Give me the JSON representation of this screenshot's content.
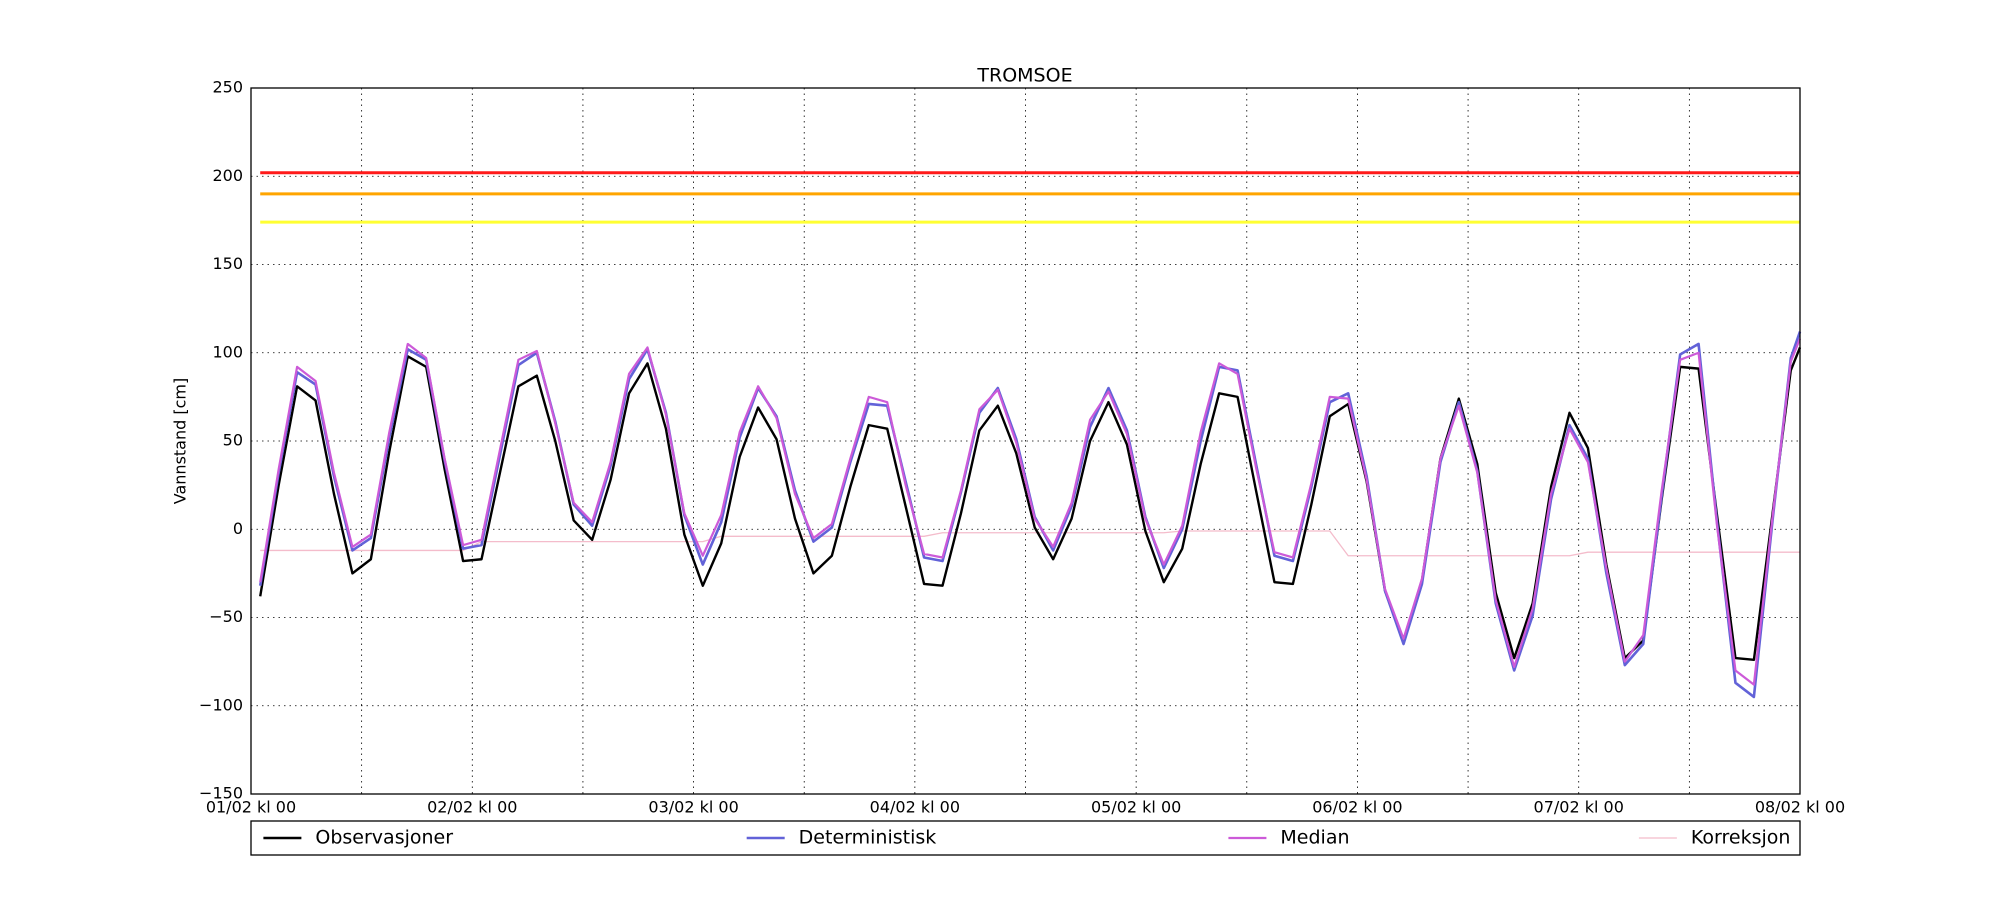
{
  "chart_data": {
    "type": "line",
    "title": "TROMSOE",
    "y_label": "Vannstand [cm]",
    "x": [
      1,
      3,
      5,
      7,
      9,
      11,
      13,
      15,
      17,
      19,
      21,
      23,
      25,
      27,
      29,
      31,
      33,
      35,
      37,
      39,
      41,
      43,
      45,
      47,
      49,
      51,
      53,
      55,
      57,
      59,
      61,
      63,
      65,
      67,
      69,
      71,
      73,
      75,
      77,
      79,
      81,
      83,
      85,
      87,
      89,
      91,
      93,
      95,
      97,
      99,
      101,
      103,
      105,
      107,
      109,
      111,
      113,
      115,
      117,
      119,
      121,
      123,
      125,
      127,
      129,
      131,
      133,
      135,
      137,
      139,
      141,
      143,
      145,
      147,
      149,
      151,
      153,
      155,
      157,
      159,
      161,
      163,
      165,
      167,
      168
    ],
    "series": [
      {
        "name": "Observasjoner",
        "color": "#000000",
        "width": 2.4,
        "values": [
          -38,
          25,
          81,
          73,
          20,
          -25,
          -17,
          44,
          98,
          92,
          34,
          -18,
          -17,
          32,
          81,
          87,
          50,
          5,
          -6,
          28,
          77,
          94,
          57,
          -3,
          -32,
          -8,
          41,
          69,
          51,
          6,
          -25,
          -15,
          24,
          59,
          57,
          13,
          -31,
          -32,
          9,
          56,
          70,
          43,
          1,
          -17,
          6,
          50,
          72,
          48,
          -1,
          -30,
          -11,
          37,
          77,
          75,
          22,
          -30,
          -31,
          14,
          64,
          71,
          27,
          -35,
          -63,
          -29,
          40,
          74,
          37,
          -36,
          -73,
          -42,
          24,
          66,
          46,
          -20,
          -73,
          -63,
          17,
          92,
          91,
          8,
          -73,
          -74,
          8,
          90,
          103
        ]
      },
      {
        "name": "Deterministisk",
        "color": "#6262d8",
        "width": 2.6,
        "values": [
          -32,
          32,
          89,
          82,
          30,
          -12,
          -5,
          52,
          102,
          96,
          39,
          -11,
          -9,
          42,
          93,
          100,
          61,
          14,
          2,
          36,
          85,
          102,
          66,
          8,
          -20,
          4,
          52,
          80,
          64,
          22,
          -7,
          1,
          38,
          71,
          70,
          27,
          -16,
          -18,
          21,
          66,
          80,
          51,
          7,
          -12,
          13,
          58,
          80,
          56,
          7,
          -22,
          0,
          50,
          92,
          90,
          37,
          -15,
          -18,
          24,
          72,
          77,
          30,
          -35,
          -65,
          -31,
          38,
          72,
          33,
          -42,
          -80,
          -49,
          17,
          59,
          40,
          -25,
          -77,
          -65,
          19,
          99,
          105,
          4,
          -87,
          -95,
          4,
          97,
          112
        ]
      },
      {
        "name": "Median",
        "color": "#cc5ad8",
        "width": 2.2,
        "values": [
          -30,
          34,
          92,
          84,
          32,
          -10,
          -3,
          55,
          105,
          97,
          40,
          -9,
          -6,
          45,
          96,
          101,
          60,
          15,
          4,
          38,
          88,
          103,
          65,
          9,
          -15,
          8,
          55,
          81,
          63,
          20,
          -5,
          3,
          40,
          75,
          72,
          25,
          -14,
          -16,
          22,
          68,
          79,
          49,
          6,
          -10,
          15,
          62,
          78,
          54,
          6,
          -20,
          2,
          55,
          94,
          88,
          35,
          -13,
          -16,
          26,
          75,
          74,
          28,
          -34,
          -62,
          -28,
          40,
          70,
          32,
          -40,
          -78,
          -45,
          20,
          57,
          38,
          -22,
          -75,
          -60,
          22,
          96,
          100,
          2,
          -80,
          -88,
          6,
          95,
          108
        ]
      },
      {
        "name": "Korreksjon",
        "color": "#f4bccb",
        "width": 1.3,
        "values": [
          -12,
          -12,
          -12,
          -12,
          -12,
          -12,
          -12,
          -12,
          -12,
          -12,
          -12,
          -12,
          -7,
          -7,
          -7,
          -7,
          -7,
          -7,
          -7,
          -7,
          -7,
          -7,
          -7,
          -7,
          -7,
          -4,
          -4,
          -4,
          -4,
          -4,
          -4,
          -4,
          -4,
          -4,
          -4,
          -4,
          -4,
          -2,
          -2,
          -2,
          -2,
          -2,
          -2,
          -2,
          -2,
          -2,
          -2,
          -2,
          -2,
          -2,
          -1,
          -1,
          -1,
          -1,
          -1,
          -1,
          -1,
          -1,
          -1,
          -15,
          -15,
          -15,
          -15,
          -15,
          -15,
          -15,
          -15,
          -15,
          -15,
          -15,
          -15,
          -15,
          -13,
          -13,
          -13,
          -13,
          -13,
          -13,
          -13,
          -13,
          -13,
          -13,
          -13,
          -13,
          -13
        ]
      }
    ],
    "reference_lines": [
      {
        "value": 202,
        "color": "#ff1a1a"
      },
      {
        "value": 190,
        "color": "#ffa500"
      },
      {
        "value": 174,
        "color": "#ffff33"
      }
    ],
    "xlim": [
      0,
      168
    ],
    "xticks": [
      {
        "value": 0,
        "label": "01/02 kl 00"
      },
      {
        "value": 24,
        "label": "02/02 kl 00"
      },
      {
        "value": 48,
        "label": "03/02 kl 00"
      },
      {
        "value": 72,
        "label": "04/02 kl 00"
      },
      {
        "value": 96,
        "label": "05/02 kl 00"
      },
      {
        "value": 120,
        "label": "06/02 kl 00"
      },
      {
        "value": 144,
        "label": "07/02 kl 00"
      },
      {
        "value": 168,
        "label": "08/02 kl 00"
      }
    ],
    "xminor_ticks": [
      12,
      36,
      60,
      84,
      108,
      132,
      156
    ],
    "ylim": [
      -150,
      250
    ],
    "yticks": [
      {
        "value": -150,
        "label": "−150"
      },
      {
        "value": -100,
        "label": "−100"
      },
      {
        "value": -50,
        "label": "−50"
      },
      0,
      50,
      100,
      150,
      200,
      250
    ],
    "grid": true,
    "legend": "below"
  }
}
